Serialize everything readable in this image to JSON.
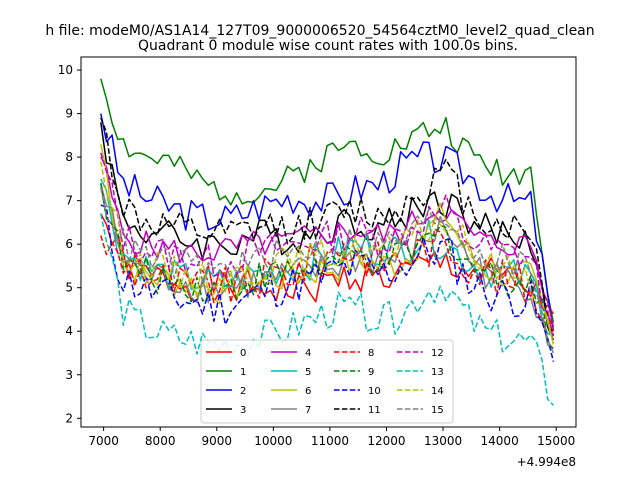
{
  "figure": {
    "suptitle": "h file: modeM0/AS1A14_127T09_9000006520_54564cztM0_level2_quad_clean",
    "title": "Quadrant 0 module wise count rates with 100.0s bins."
  },
  "chart_data": {
    "type": "line",
    "title": "Quadrant 0 module wise count rates with 100.0s bins.",
    "xlabel": "",
    "ylabel": "",
    "x_offset_label": "+4.994e8",
    "xlim": [
      6600,
      15350
    ],
    "ylim": [
      1.8,
      10.3
    ],
    "xticks": [
      7000,
      8000,
      9000,
      10000,
      11000,
      12000,
      13000,
      14000,
      15000
    ],
    "xtick_labels": [
      "7000",
      "8000",
      "9000",
      "10000",
      "11000",
      "12000",
      "13000",
      "14000",
      "15000"
    ],
    "yticks": [
      2,
      3,
      4,
      5,
      6,
      7,
      8,
      9,
      10
    ],
    "ytick_labels": [
      "2",
      "3",
      "4",
      "5",
      "6",
      "7",
      "8",
      "9",
      "10"
    ],
    "x_start": 6950,
    "x_step": 100,
    "legend": {
      "position": "lower-center",
      "columns": 4
    },
    "series": [
      {
        "name": "0",
        "color": "#ff0000",
        "style": "solid",
        "base": 5.3,
        "amp": 0.25,
        "seed": 1,
        "shape": [
          6.7,
          5.6,
          5.3,
          5.2,
          5.1,
          5.1,
          5.0,
          5.0,
          5.0,
          4.9,
          5.0,
          5.2,
          5.3,
          5.2,
          5.3,
          5.5,
          5.6,
          5.4,
          5.3,
          5.2,
          4.9,
          4.4
        ]
      },
      {
        "name": "1",
        "color": "#008000",
        "style": "solid",
        "base": 7.6,
        "amp": 0.2,
        "seed": 2,
        "shape": [
          9.8,
          8.3,
          8.0,
          7.9,
          7.6,
          7.3,
          7.2,
          7.2,
          7.3,
          7.6,
          7.9,
          8.2,
          8.3,
          8.1,
          8.3,
          8.6,
          8.7,
          8.1,
          7.8,
          7.6,
          7.7,
          4.2
        ]
      },
      {
        "name": "2",
        "color": "#0000ff",
        "style": "solid",
        "base": 6.9,
        "amp": 0.25,
        "seed": 3,
        "shape": [
          9.0,
          7.4,
          7.1,
          6.9,
          6.7,
          6.6,
          6.6,
          6.8,
          7.0,
          7.1,
          7.0,
          7.1,
          7.3,
          7.4,
          7.8,
          8.0,
          7.9,
          7.6,
          7.2,
          7.0,
          6.9,
          4.0
        ]
      },
      {
        "name": "3",
        "color": "#000000",
        "style": "solid",
        "base": 6.2,
        "amp": 0.25,
        "seed": 4,
        "shape": [
          8.8,
          6.6,
          6.3,
          6.2,
          6.1,
          6.0,
          6.0,
          6.2,
          6.2,
          6.1,
          6.3,
          6.5,
          6.5,
          6.4,
          6.6,
          7.0,
          7.0,
          6.6,
          6.3,
          6.2,
          6.1,
          3.8
        ]
      },
      {
        "name": "4",
        "color": "#bf00bf",
        "style": "solid",
        "base": 6.0,
        "amp": 0.2,
        "seed": 5,
        "shape": [
          8.0,
          6.2,
          6.0,
          5.9,
          5.8,
          5.8,
          5.9,
          6.0,
          6.0,
          6.1,
          6.2,
          6.3,
          6.3,
          6.2,
          6.3,
          6.7,
          6.8,
          6.3,
          6.0,
          6.0,
          6.0,
          4.1
        ]
      },
      {
        "name": "5",
        "color": "#00bfbf",
        "style": "solid",
        "base": 5.4,
        "amp": 0.25,
        "seed": 6,
        "shape": [
          7.5,
          5.8,
          5.5,
          5.3,
          5.2,
          5.1,
          5.1,
          5.3,
          5.4,
          5.5,
          5.6,
          5.8,
          6.0,
          5.8,
          5.9,
          6.2,
          6.0,
          5.6,
          5.4,
          5.3,
          5.2,
          3.9
        ]
      },
      {
        "name": "6",
        "color": "#bfbf00",
        "style": "solid",
        "base": 5.3,
        "amp": 0.25,
        "seed": 7,
        "shape": [
          8.3,
          5.7,
          5.3,
          5.2,
          5.1,
          5.0,
          5.0,
          5.2,
          5.2,
          5.3,
          5.4,
          5.5,
          5.6,
          5.5,
          5.6,
          6.2,
          6.7,
          5.8,
          5.4,
          5.3,
          5.2,
          3.7
        ]
      },
      {
        "name": "7",
        "color": "#808080",
        "style": "solid",
        "base": 5.3,
        "amp": 0.25,
        "seed": 8,
        "shape": [
          7.4,
          5.7,
          5.3,
          5.2,
          5.1,
          5.0,
          5.0,
          5.1,
          5.2,
          5.3,
          5.4,
          5.5,
          5.7,
          5.6,
          5.7,
          6.1,
          6.4,
          5.7,
          5.3,
          5.1,
          5.0,
          3.6
        ]
      },
      {
        "name": "8",
        "color": "#ff0000",
        "style": "dashed",
        "base": 5.4,
        "amp": 0.3,
        "seed": 9,
        "shape": [
          6.2,
          5.5,
          5.3,
          5.2,
          5.0,
          5.0,
          5.0,
          5.1,
          5.3,
          5.4,
          5.6,
          5.9,
          5.8,
          5.6,
          5.7,
          5.9,
          6.0,
          5.6,
          5.3,
          5.1,
          5.0,
          4.0
        ]
      },
      {
        "name": "9",
        "color": "#008000",
        "style": "dashed",
        "base": 5.3,
        "amp": 0.25,
        "seed": 10,
        "shape": [
          7.4,
          5.6,
          5.3,
          5.2,
          5.1,
          5.0,
          5.0,
          5.2,
          5.3,
          5.4,
          5.5,
          5.6,
          5.7,
          5.6,
          5.7,
          6.0,
          6.3,
          5.6,
          5.3,
          5.2,
          5.1,
          3.6
        ]
      },
      {
        "name": "10",
        "color": "#0000ff",
        "style": "dashed",
        "base": 5.0,
        "amp": 0.3,
        "seed": 11,
        "shape": [
          6.9,
          5.2,
          5.0,
          4.8,
          4.7,
          4.6,
          4.6,
          4.8,
          5.0,
          5.1,
          5.2,
          5.4,
          5.5,
          5.3,
          5.5,
          5.8,
          5.9,
          5.2,
          4.9,
          4.8,
          4.7,
          3.3
        ]
      },
      {
        "name": "11",
        "color": "#000000",
        "style": "dashed",
        "base": 6.4,
        "amp": 0.25,
        "seed": 12,
        "shape": [
          8.9,
          6.9,
          6.5,
          6.4,
          6.3,
          6.2,
          6.2,
          6.3,
          6.4,
          6.4,
          6.5,
          6.7,
          6.8,
          6.6,
          6.9,
          7.3,
          7.7,
          6.9,
          6.5,
          6.4,
          6.3,
          3.9
        ]
      },
      {
        "name": "12",
        "color": "#bf00bf",
        "style": "dashed",
        "base": 5.9,
        "amp": 0.25,
        "seed": 13,
        "shape": [
          8.1,
          6.2,
          5.9,
          5.8,
          5.7,
          5.6,
          5.6,
          5.8,
          5.9,
          6.0,
          6.1,
          6.2,
          6.3,
          6.1,
          6.2,
          6.6,
          6.8,
          6.1,
          5.9,
          5.8,
          5.7,
          3.8
        ]
      },
      {
        "name": "13",
        "color": "#00bfbf",
        "style": "dashed",
        "base": 4.0,
        "amp": 0.25,
        "seed": 14,
        "shape": [
          6.7,
          4.5,
          4.1,
          3.9,
          3.8,
          3.7,
          3.7,
          3.8,
          3.9,
          4.1,
          4.3,
          4.5,
          4.5,
          4.2,
          4.4,
          4.9,
          5.1,
          4.3,
          3.9,
          3.8,
          3.7,
          2.3
        ]
      },
      {
        "name": "14",
        "color": "#bfbf00",
        "style": "dashed",
        "base": 5.5,
        "amp": 0.25,
        "seed": 15,
        "shape": [
          7.9,
          5.9,
          5.5,
          5.4,
          5.3,
          5.2,
          5.2,
          5.4,
          5.5,
          5.6,
          5.7,
          5.8,
          5.9,
          5.8,
          5.9,
          6.3,
          6.6,
          5.9,
          5.5,
          5.4,
          5.3,
          3.7
        ]
      },
      {
        "name": "15",
        "color": "#808080",
        "style": "dashed",
        "base": 5.7,
        "amp": 0.25,
        "seed": 16,
        "shape": [
          7.3,
          6.0,
          5.7,
          5.6,
          5.5,
          5.4,
          5.4,
          5.6,
          5.7,
          5.8,
          5.9,
          6.0,
          6.1,
          6.0,
          6.1,
          6.5,
          6.7,
          6.0,
          5.7,
          5.6,
          5.5,
          3.5
        ]
      }
    ]
  }
}
